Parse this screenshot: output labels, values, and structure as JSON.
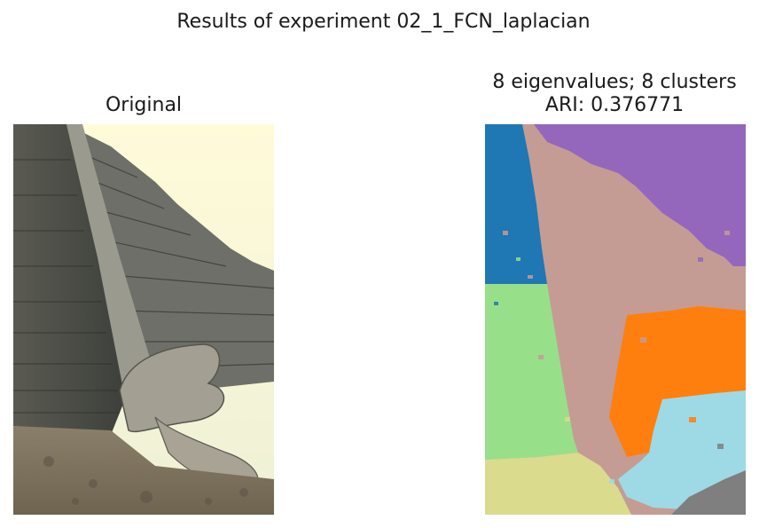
{
  "figure": {
    "title": "Results of experiment 02_1_FCN_laplacian"
  },
  "left_panel": {
    "title": "Original",
    "image_description": "Photograph of a stepped stone pyramid with a serpent-head sculpture at the base of the staircase against a pale sky"
  },
  "right_panel": {
    "title_line1": "8 eigenvalues; 8 clusters",
    "title_line2": "ARI: 0.376771",
    "cluster_colors": {
      "blue": "#1f77b4",
      "purple": "#9467bd",
      "tan": "#c49c94",
      "green": "#98df8a",
      "orange": "#ff7f0e",
      "light_blue": "#9edae5",
      "olive": "#dbdb8d",
      "gray": "#7f7f7f"
    }
  }
}
